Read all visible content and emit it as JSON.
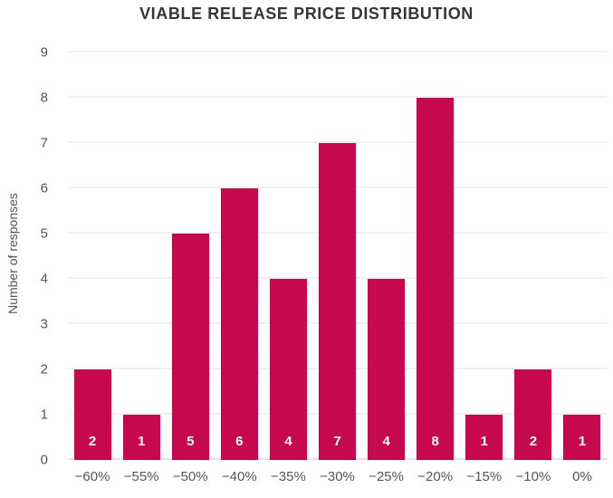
{
  "chart_data": {
    "type": "bar",
    "title": "VIABLE RELEASE PRICE DISTRIBUTION",
    "xlabel": "",
    "ylabel": "Number of responses",
    "categories": [
      "-60%",
      "-55%",
      "-50%",
      "-40%",
      "-35%",
      "-30%",
      "-25%",
      "-20%",
      "-15%",
      "-10%",
      "0%"
    ],
    "values": [
      2,
      1,
      5,
      6,
      4,
      7,
      4,
      8,
      1,
      2,
      1
    ],
    "bar_labels": [
      "2",
      "1",
      "5",
      "6",
      "4",
      "7",
      "4",
      "8",
      "1",
      "2",
      "1"
    ],
    "ylim": [
      0,
      9
    ],
    "yticks": [
      0,
      1,
      2,
      3,
      4,
      5,
      6,
      7,
      8,
      9
    ],
    "grid": "horizontal",
    "legend": "none",
    "colors": {
      "bar": "#C6094D",
      "bar_label": "#FFFFFF",
      "title": "#32363C",
      "axis_text": "#555555",
      "gridline": "#F1F1F1",
      "baseline": "#E2E2E2",
      "background": "#FFFFFF"
    }
  }
}
